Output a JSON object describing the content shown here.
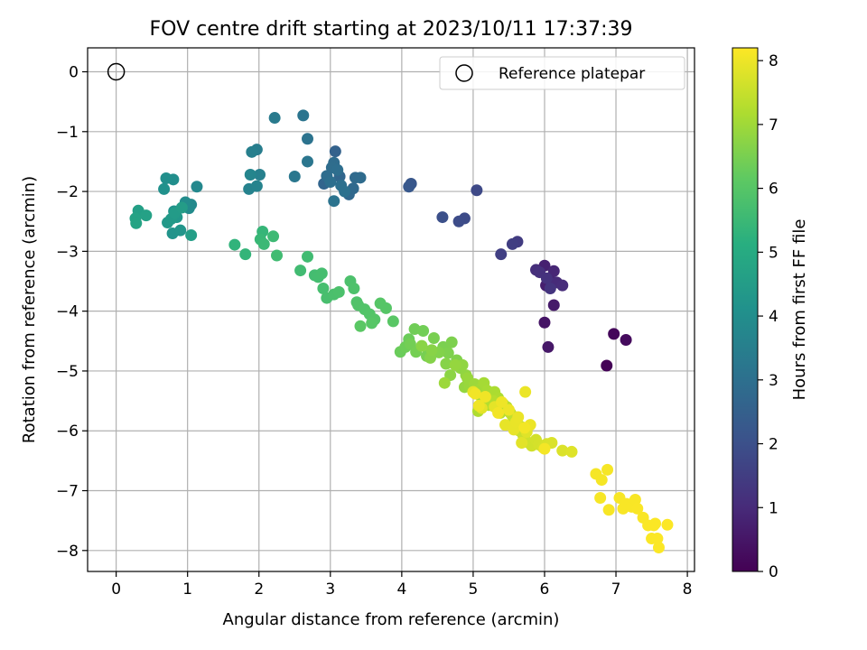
{
  "chart_data": {
    "type": "scatter",
    "title": "FOV centre drift starting at 2023/10/11 17:37:39",
    "xlabel": "Angular distance from reference (arcmin)",
    "ylabel": "Rotation from reference (arcmin)",
    "xlim": [
      -0.4,
      8.1
    ],
    "ylim": [
      -8.35,
      0.4
    ],
    "xticks": [
      "0",
      "1",
      "2",
      "3",
      "4",
      "5",
      "6",
      "7",
      "8"
    ],
    "yticks": [
      "0",
      "−1",
      "−2",
      "−3",
      "−4",
      "−5",
      "−6",
      "−7",
      "−8"
    ],
    "grid": true,
    "legend": {
      "position": "top-right",
      "entries": [
        "Reference platepar"
      ]
    },
    "reference_point": {
      "x": 0,
      "y": 0
    },
    "colorbar": {
      "label": "Hours from first FF file",
      "range": [
        0,
        8.2
      ],
      "ticks": [
        "0",
        "1",
        "2",
        "3",
        "4",
        "5",
        "6",
        "7",
        "8"
      ],
      "colormap": "viridis"
    },
    "series": [
      {
        "x": [
          6.87,
          6.97,
          7.14,
          6.0,
          6.05,
          6.13,
          6.02,
          6.0,
          6.07,
          6.13,
          6.17,
          6.25,
          5.88,
          5.93,
          6.03,
          6.08,
          5.62,
          5.55,
          5.39,
          5.05,
          4.88,
          4.8,
          4.57,
          4.13,
          4.1,
          3.07,
          2.91,
          3.13,
          3.26,
          3.32,
          3.35,
          3.42,
          3.05,
          3.02,
          2.95,
          3.1,
          3.0,
          3.15,
          3.2,
          3.05,
          2.68,
          2.62,
          2.68,
          2.5,
          2.22,
          1.97,
          1.9,
          2.01,
          1.86,
          1.97,
          1.88,
          1.13,
          1.05,
          1.02,
          0.97,
          0.8,
          0.7,
          0.67,
          0.81,
          0.79,
          0.9,
          0.85,
          0.72,
          0.77,
          0.82,
          0.92,
          1.05,
          0.31,
          0.42,
          0.27,
          0.28,
          1.66,
          1.81,
          2.05,
          2.02,
          2.07,
          2.2,
          2.25,
          2.68,
          2.58,
          2.78,
          2.83,
          2.88,
          2.9,
          2.95,
          3.05,
          3.12,
          3.28,
          3.33,
          3.37,
          3.39,
          3.48,
          3.55,
          3.62,
          3.7,
          3.78,
          3.58,
          3.88,
          3.42
        ],
        "y": [
          -4.91,
          -4.38,
          -4.48,
          -4.19,
          -4.6,
          -3.9,
          -3.57,
          -3.24,
          -3.47,
          -3.33,
          -3.52,
          -3.57,
          -3.31,
          -3.35,
          -3.45,
          -3.62,
          -2.84,
          -2.88,
          -3.05,
          -1.98,
          -2.45,
          -2.5,
          -2.43,
          -1.87,
          -1.92,
          -1.33,
          -1.87,
          -1.75,
          -2.05,
          -1.95,
          -1.77,
          -1.77,
          -1.52,
          -1.6,
          -1.74,
          -1.64,
          -1.84,
          -1.9,
          -2.0,
          -2.16,
          -1.12,
          -0.73,
          -1.5,
          -1.75,
          -0.77,
          -1.3,
          -1.34,
          -1.72,
          -1.96,
          -1.91,
          -1.72,
          -1.92,
          -2.22,
          -2.28,
          -2.18,
          -1.8,
          -1.78,
          -1.96,
          -2.33,
          -2.7,
          -2.65,
          -2.43,
          -2.52,
          -2.46,
          -2.36,
          -2.27,
          -2.73,
          -2.32,
          -2.4,
          -2.45,
          -2.53,
          -2.89,
          -3.05,
          -2.67,
          -2.8,
          -2.88,
          -2.75,
          -3.07,
          -3.09,
          -3.32,
          -3.4,
          -3.43,
          -3.37,
          -3.62,
          -3.78,
          -3.72,
          -3.68,
          -3.5,
          -3.62,
          -3.85,
          -3.9,
          -3.97,
          -4.05,
          -4.14,
          -3.87,
          -3.95,
          -4.2,
          -4.17,
          -4.25
        ],
        "hours": [
          0.05,
          0.15,
          0.25,
          0.45,
          0.55,
          0.6,
          0.7,
          0.75,
          0.85,
          0.9,
          1.0,
          1.05,
          1.1,
          1.15,
          1.2,
          1.25,
          1.45,
          1.5,
          1.55,
          1.8,
          1.85,
          1.9,
          2.0,
          2.2,
          2.25,
          2.55,
          2.65,
          2.7,
          2.75,
          2.8,
          2.82,
          2.85,
          2.88,
          2.9,
          2.92,
          2.95,
          2.98,
          3.0,
          3.05,
          3.1,
          3.1,
          3.15,
          3.2,
          3.25,
          3.35,
          3.45,
          3.5,
          3.55,
          3.6,
          3.65,
          3.7,
          3.8,
          3.85,
          3.9,
          3.95,
          4.0,
          4.05,
          4.1,
          4.15,
          4.2,
          4.25,
          4.3,
          4.35,
          4.4,
          4.45,
          4.5,
          4.55,
          4.6,
          4.65,
          4.7,
          4.75,
          5.3,
          5.35,
          5.4,
          5.45,
          5.5,
          5.55,
          5.6,
          5.6,
          5.62,
          5.65,
          5.68,
          5.7,
          5.72,
          5.75,
          5.78,
          5.8,
          5.82,
          5.85,
          5.88,
          5.9,
          5.92,
          5.95,
          5.97,
          6.0,
          6.0,
          6.02,
          6.05,
          6.08
        ]
      },
      {
        "x": [
          3.98,
          4.1,
          4.05,
          4.18,
          4.3,
          4.12,
          4.2,
          4.35,
          4.45,
          4.58,
          4.7,
          4.65,
          4.77,
          4.52,
          4.4,
          4.62,
          4.42,
          4.28,
          4.68,
          4.82,
          4.85,
          4.9,
          4.88,
          4.75,
          4.95,
          4.92,
          4.6,
          5.02,
          5.05,
          5.1,
          5.12,
          5.15,
          5.2,
          5.25,
          5.3,
          5.35,
          5.07,
          5.18,
          5.22,
          5.28,
          5.33,
          5.38,
          5.42,
          5.47,
          5.52,
          5.55,
          5.58,
          5.62,
          5.67,
          5.7,
          5.65,
          5.72,
          5.78,
          5.82,
          5.88,
          5.92,
          5.98,
          6.03,
          6.1,
          6.25,
          6.38,
          5.75,
          5.68,
          5.12,
          5.3,
          5.0,
          5.45,
          5.57,
          5.6,
          5.63,
          5.73,
          5.8,
          5.5,
          5.4,
          5.08,
          5.17,
          5.03,
          5.35,
          5.72,
          6.0
        ],
        "y": [
          -4.68,
          -4.47,
          -4.6,
          -4.3,
          -4.33,
          -4.55,
          -4.68,
          -4.75,
          -4.45,
          -4.6,
          -4.52,
          -4.7,
          -4.82,
          -4.69,
          -4.78,
          -4.88,
          -4.65,
          -4.58,
          -5.07,
          -4.95,
          -4.9,
          -5.07,
          -5.27,
          -4.9,
          -5.25,
          -5.12,
          -5.2,
          -5.22,
          -5.32,
          -5.3,
          -5.45,
          -5.2,
          -5.33,
          -5.4,
          -5.35,
          -5.45,
          -5.67,
          -5.47,
          -5.57,
          -5.5,
          -5.62,
          -5.7,
          -5.55,
          -5.6,
          -5.7,
          -5.75,
          -5.8,
          -5.88,
          -5.93,
          -6.07,
          -6.0,
          -6.12,
          -6.2,
          -6.25,
          -6.15,
          -6.23,
          -6.28,
          -6.22,
          -6.2,
          -6.33,
          -6.35,
          -6.02,
          -6.2,
          -5.62,
          -5.6,
          -5.35,
          -5.9,
          -5.98,
          -5.85,
          -5.77,
          -5.35,
          -5.9,
          -5.65,
          -5.52,
          -5.58,
          -5.43,
          -5.38,
          -5.7,
          -5.95,
          -6.3
        ],
        "hours": [
          6.3,
          6.32,
          6.35,
          6.38,
          6.4,
          6.42,
          6.45,
          6.48,
          6.5,
          6.52,
          6.55,
          6.57,
          6.6,
          6.62,
          6.65,
          6.67,
          6.7,
          6.72,
          6.75,
          6.77,
          6.8,
          6.82,
          6.85,
          6.87,
          6.9,
          6.92,
          6.95,
          6.97,
          7.0,
          7.02,
          7.05,
          7.07,
          7.1,
          7.12,
          7.15,
          7.17,
          7.2,
          7.22,
          7.25,
          7.27,
          7.3,
          7.32,
          7.35,
          7.37,
          7.4,
          7.42,
          7.45,
          7.47,
          7.5,
          7.52,
          7.55,
          7.57,
          7.6,
          7.62,
          7.65,
          7.67,
          7.7,
          7.72,
          7.75,
          7.77,
          7.8,
          7.82,
          7.85,
          7.87,
          7.88,
          7.9,
          7.92,
          7.93,
          7.95,
          7.96,
          7.97,
          7.98,
          8.0,
          8.01,
          8.02,
          8.03,
          8.05,
          8.06,
          8.07,
          8.08
        ]
      },
      {
        "x": [
          6.72,
          6.8,
          6.78,
          6.88,
          6.9,
          7.05,
          7.1,
          7.15,
          7.22,
          7.27,
          7.3,
          7.38,
          7.45,
          7.5,
          7.53,
          7.58,
          7.6,
          7.55,
          7.72
        ],
        "y": [
          -6.72,
          -6.82,
          -7.12,
          -6.65,
          -7.32,
          -7.12,
          -7.3,
          -7.22,
          -7.27,
          -7.15,
          -7.3,
          -7.45,
          -7.58,
          -7.8,
          -7.58,
          -7.8,
          -7.95,
          -7.55,
          -7.57
        ],
        "hours": [
          8.1,
          8.1,
          8.11,
          8.11,
          8.12,
          8.12,
          8.13,
          8.13,
          8.14,
          8.14,
          8.15,
          8.15,
          8.16,
          8.16,
          8.17,
          8.17,
          8.18,
          8.18,
          8.19
        ]
      }
    ]
  }
}
